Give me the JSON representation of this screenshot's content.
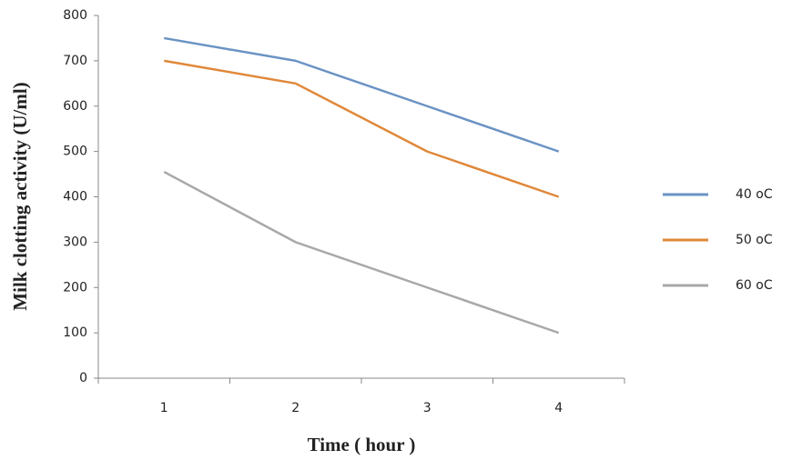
{
  "chart_data": {
    "type": "line",
    "x_label": "Time ( hour )",
    "y_label": "Milk clotting activity (U/ml)",
    "categories": [
      "1",
      "2",
      "3",
      "4"
    ],
    "series": [
      {
        "name": "40 oC",
        "color": "#6a93c4",
        "values": [
          750,
          700,
          600,
          500
        ]
      },
      {
        "name": "50 oC",
        "color": "#e0883a",
        "values": [
          700,
          650,
          500,
          400
        ]
      },
      {
        "name": "60 oC",
        "color": "#a8a8a8",
        "values": [
          455,
          300,
          200,
          100
        ]
      }
    ],
    "ylim": [
      0,
      800
    ],
    "yticks": [
      0,
      100,
      200,
      300,
      400,
      500,
      600,
      700,
      800
    ],
    "grid": false,
    "legend": "right"
  }
}
